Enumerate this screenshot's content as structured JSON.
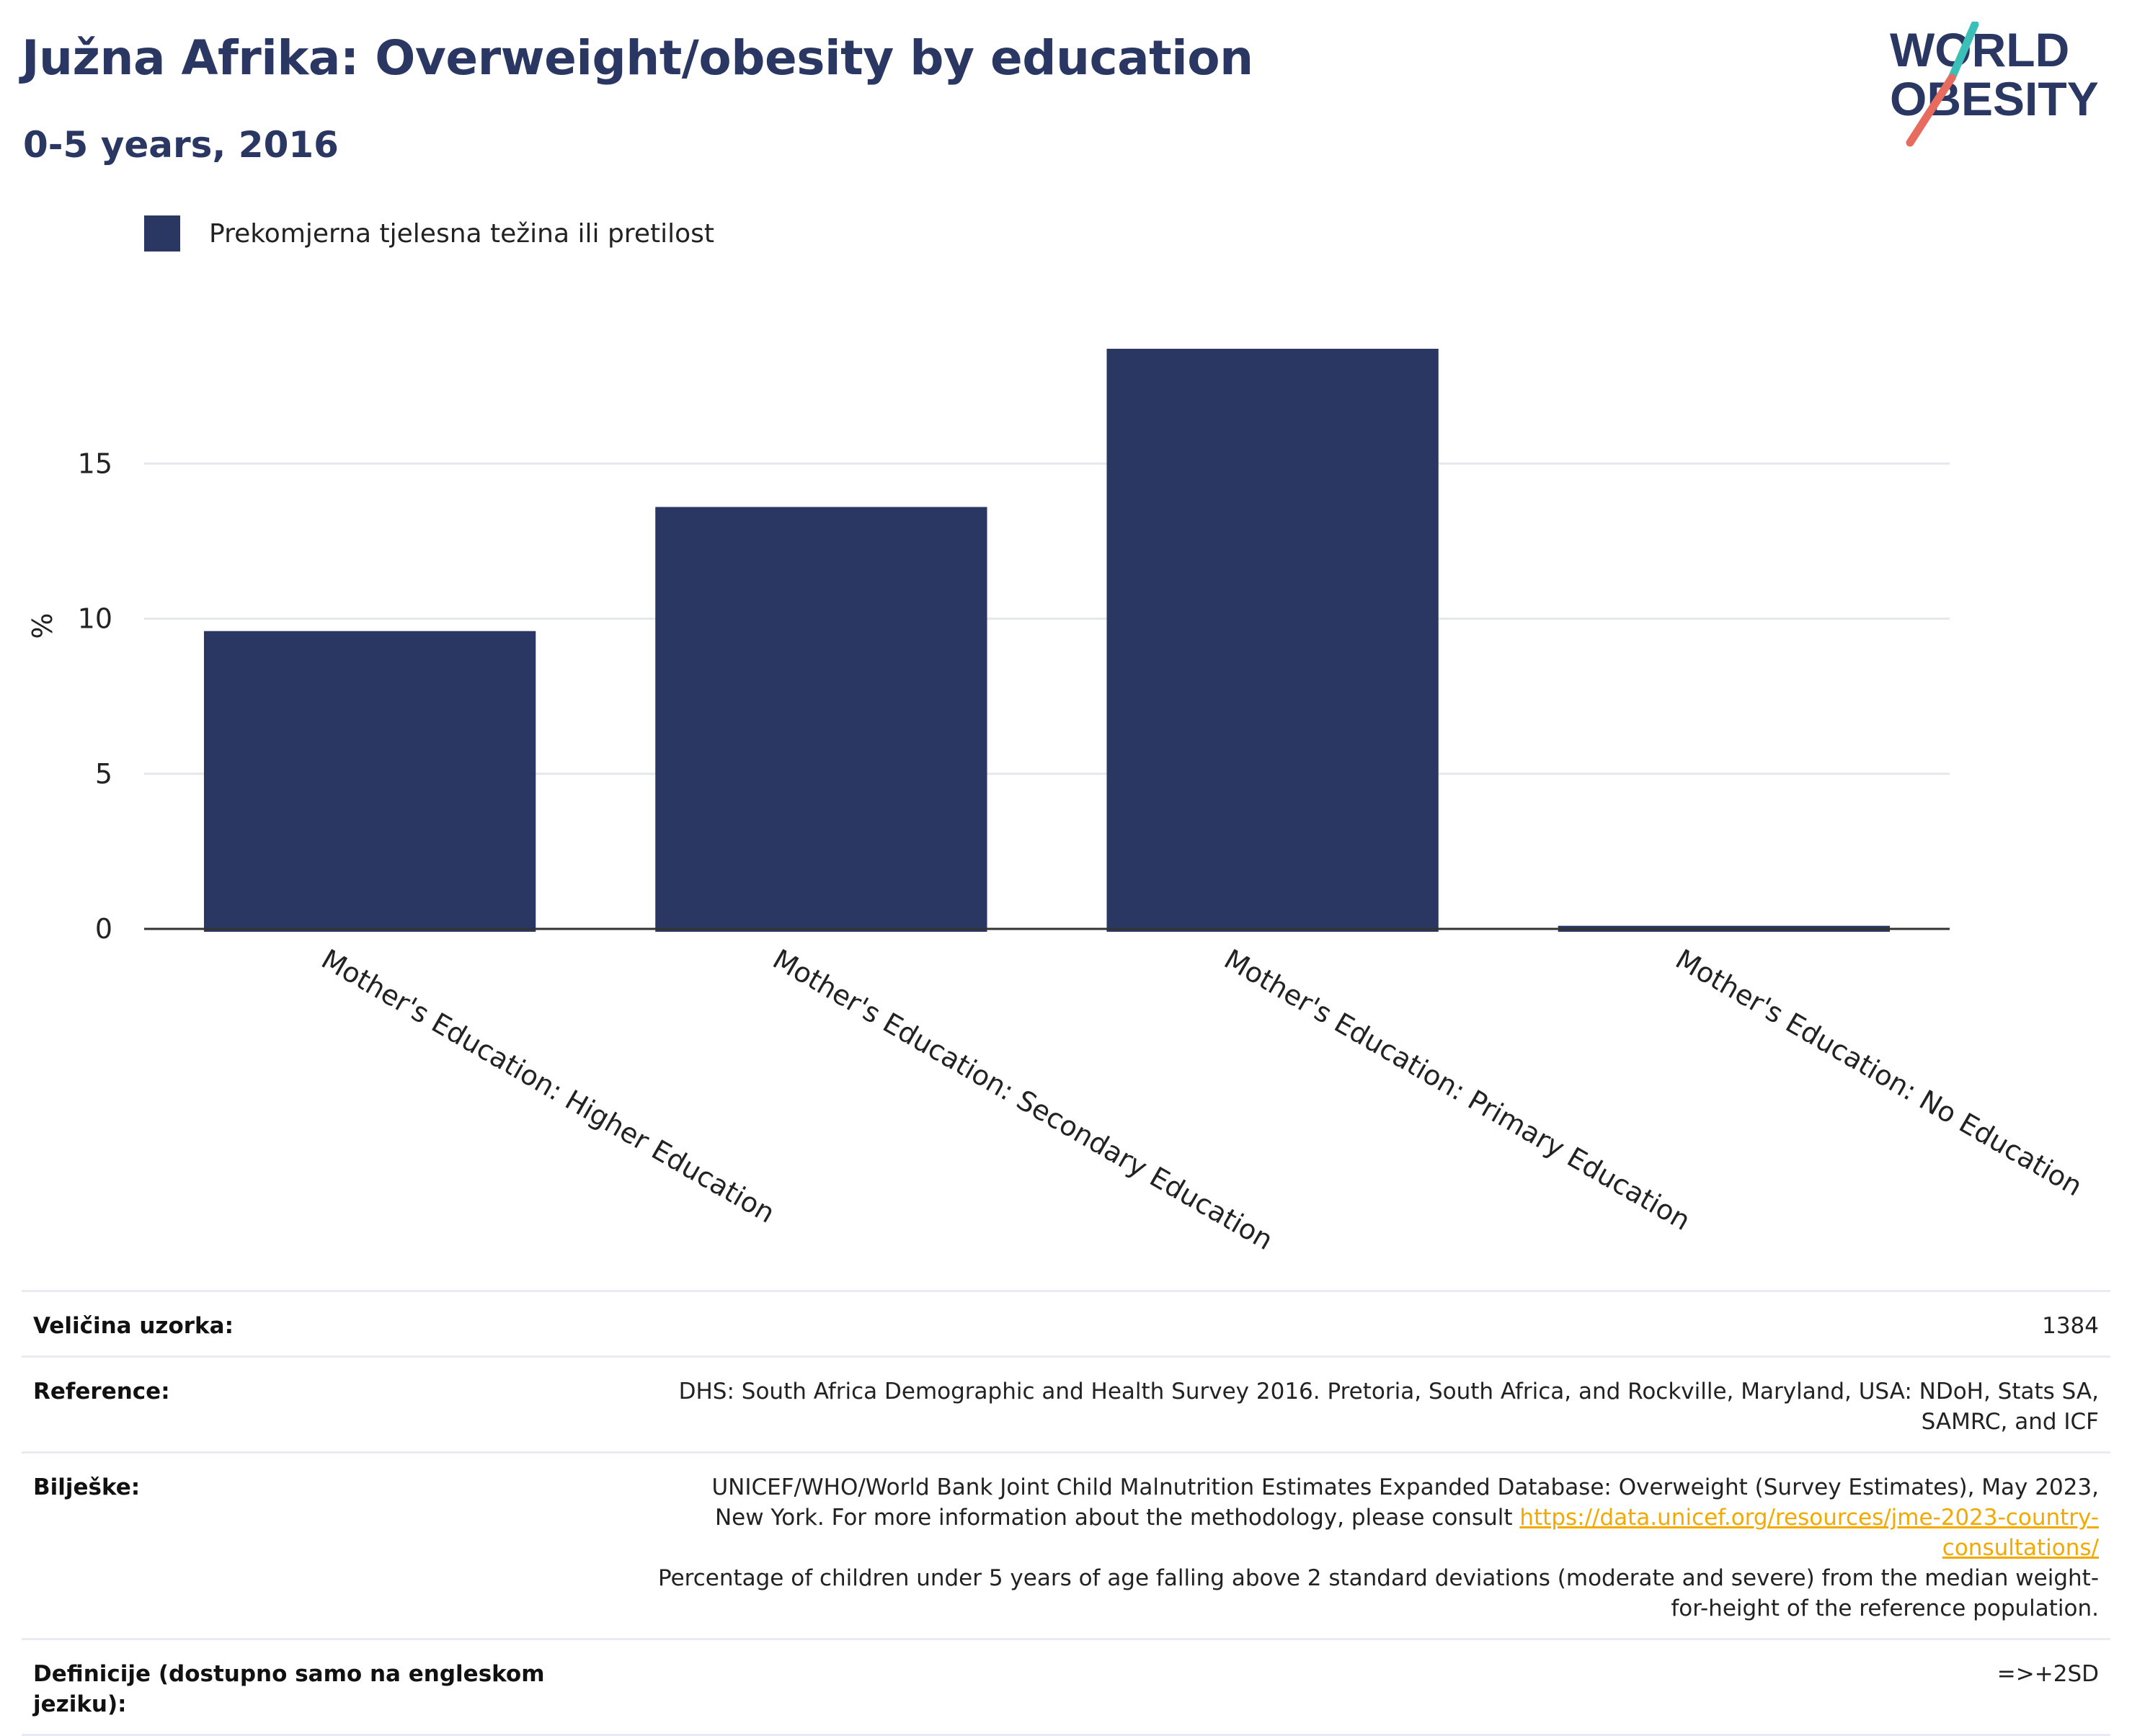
{
  "header": {
    "title": "Južna Afrika: Overweight/obesity by education",
    "subtitle": "0-5 years, 2016"
  },
  "logo": {
    "line1": "WORLD",
    "line2": "OBESITY",
    "icon": "world-obesity-logo"
  },
  "colors": {
    "title": "#2a3762",
    "bar": "#2a3762",
    "link": "#f2a900",
    "logo_teal": "#3bbfb7",
    "logo_coral": "#e86b5f"
  },
  "chart_data": {
    "type": "bar",
    "categories": [
      "Mother's Education: Higher Education",
      "Mother's Education: Secondary Education",
      "Mother's Education: Primary Education",
      "Mother's Education: No Education"
    ],
    "series": [
      {
        "name": "Prekomjerna tjelesna težina ili pretilost",
        "values": [
          9.6,
          13.6,
          18.7,
          0.1
        ]
      }
    ],
    "ylabel": "%",
    "xlabel": "",
    "ylim": [
      0,
      20
    ],
    "yticks": [
      0,
      5,
      10,
      15
    ],
    "grid": true,
    "legend": "top-left"
  },
  "info": {
    "sample_label": "Veličina uzorka:",
    "sample_value": "1384",
    "reference_label": "Reference:",
    "reference_value": "DHS: South Africa Demographic and Health Survey 2016. Pretoria, South Africa, and Rockville, Maryland, USA: NDoH, Stats SA, SAMRC, and ICF",
    "notes_label": "Bilješke:",
    "notes_text1": "UNICEF/WHO/World Bank Joint Child Malnutrition Estimates Expanded Database: Overweight (Survey Estimates), May 2023, New York. For more information about the methodology, please consult",
    "notes_link": "https://data.unicef.org/resources/jme-2023-country-consultations/",
    "notes_text2": "Percentage of children under 5 years of age falling above 2 standard deviations (moderate and severe) from the median weight-for-height of the reference population.",
    "definitions_label": "Definicije (dostupno samo na engleskom jeziku):",
    "definitions_value": "=>+2SD"
  }
}
